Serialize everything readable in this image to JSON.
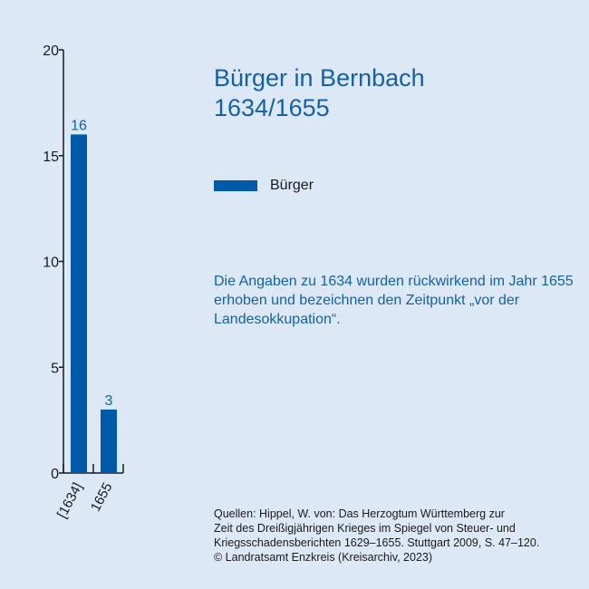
{
  "title": {
    "line1": "Bürger in Bernbach",
    "line2": "1634/1655"
  },
  "legend": {
    "label": "Bürger",
    "color": "#005aa9"
  },
  "note": "Die Angaben zu 1634 wurden rückwirkend im Jahr 1655 erhoben und bezeichnen den Zeitpunkt „vor der Landesokkupation“.",
  "sources": {
    "line1": "Quellen: Hippel, W. von: Das Herzogtum Württemberg zur",
    "line2": "Zeit des Dreißigjährigen Krieges im Spiegel von Steuer- und",
    "line3": "Kriegsschadensberichten 1629–1655. Stuttgart 2009, S. 47–120.",
    "line4": "© Landratsamt Enzkreis (Kreisarchiv, 2023)"
  },
  "chart_data": {
    "type": "bar",
    "categories": [
      "[1634]",
      "1655"
    ],
    "series": [
      {
        "name": "Bürger",
        "values": [
          16,
          3
        ]
      }
    ],
    "data_labels": [
      "16",
      "3"
    ],
    "yticks": [
      0,
      5,
      10,
      15,
      20
    ],
    "ylim": [
      0,
      20
    ],
    "grid": false,
    "legend_position": "right-top",
    "colors": {
      "bar": "#005aa9",
      "data_label": "#1560a8",
      "axis": "#1a1a1a",
      "background": "#dce8f5"
    }
  }
}
